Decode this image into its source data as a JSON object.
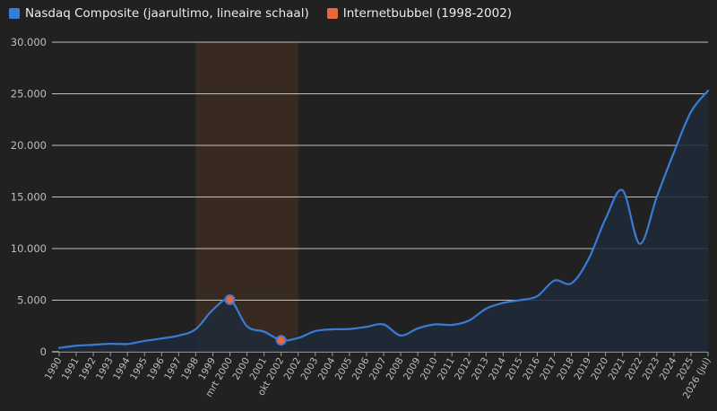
{
  "legend": [
    {
      "label": "Nasdaq Composite (jaarultimo, lineaire schaal)",
      "color": "#3a7bd5",
      "icon": "square-swatch"
    },
    {
      "label": "Internetbubbel (1998-2002)",
      "color": "#e8683a",
      "icon": "square-swatch"
    }
  ],
  "colors": {
    "background": "#212121",
    "line": "#3a7bd5",
    "area": "#1f2a3a",
    "band": "#3a2a22",
    "marker_fill": "#e8683a",
    "marker_stroke": "#4a78d0",
    "grid": "#e6e6e6"
  },
  "chart_data": {
    "type": "line",
    "x_categories": [
      "1990",
      "1991",
      "1992",
      "1993",
      "1994",
      "1995",
      "1996",
      "1997",
      "1998",
      "1999",
      "mrt 2000",
      "2000",
      "2001",
      "okt 2002",
      "2002",
      "2003",
      "2004",
      "2005",
      "2006",
      "2007",
      "2008",
      "2009",
      "2010",
      "2011",
      "2012",
      "2013",
      "2014",
      "2015",
      "2016",
      "2017",
      "2018",
      "2019",
      "2020",
      "2021",
      "2022",
      "2023",
      "2024",
      "2025",
      "2026 (jul)"
    ],
    "series": [
      {
        "name": "Nasdaq Composite (jaarultimo, lineaire schaal)",
        "values": [
          374,
          586,
          677,
          777,
          752,
          1052,
          1291,
          1570,
          2193,
          4069,
          5048,
          2471,
          1950,
          1114,
          1336,
          2003,
          2175,
          2205,
          2415,
          2652,
          1577,
          2269,
          2653,
          2605,
          3020,
          4177,
          4736,
          5007,
          5383,
          6903,
          6635,
          8973,
          12888,
          15645,
          10466,
          15011,
          19311,
          23242,
          25300
        ]
      }
    ],
    "highlight_band": {
      "name": "Internetbubbel (1998-2002)",
      "from": "1998",
      "to": "2002"
    },
    "markers": [
      {
        "x": "mrt 2000",
        "value": 5048
      },
      {
        "x": "okt 2002",
        "value": 1114
      }
    ],
    "y_ticks": [
      "0",
      "5.000",
      "10.000",
      "15.000",
      "20.000",
      "25.000",
      "30.000"
    ],
    "y_tick_values": [
      0,
      5000,
      10000,
      15000,
      20000,
      25000,
      30000
    ],
    "ylim": [
      0,
      30000
    ],
    "grid": true,
    "legend_position": "top-left"
  }
}
